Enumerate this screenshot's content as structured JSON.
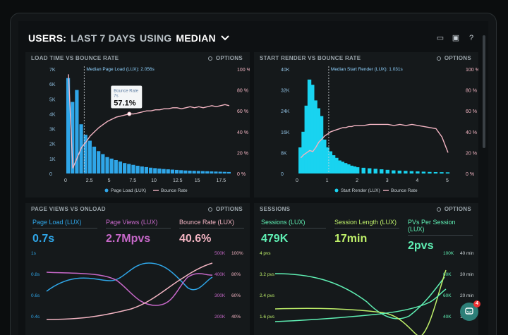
{
  "header": {
    "prefix": "USERS:",
    "range": "LAST 7 DAYS",
    "using": "USING",
    "metric": "MEDIAN"
  },
  "colors": {
    "blue": "#2fa6e8",
    "cyan": "#19d3f0",
    "pink": "#f2b4c2",
    "purple": "#c768c9",
    "green": "#5ff0b4",
    "lime": "#bff06a"
  },
  "panels": {
    "load": {
      "title": "LOAD TIME VS BOUNCE RATE",
      "options": "OPTIONS",
      "yleft": [
        "7K",
        "6K",
        "5K",
        "4K",
        "3K",
        "2K",
        "1K",
        "0"
      ],
      "yright": [
        "100 %",
        "80 %",
        "60 %",
        "40 %",
        "20 %",
        "0 %"
      ],
      "xticks": [
        "0",
        "2.5",
        "5",
        "7.5",
        "10",
        "12.5",
        "15",
        "17.5"
      ],
      "median_label": "Median Page Load (LUX): 2.056s",
      "tooltip_title": "Bounce Rate",
      "tooltip_sub": "7s",
      "tooltip_value": "57.1%",
      "legend": [
        "Page Load (LUX)",
        "Bounce Rate"
      ]
    },
    "render": {
      "title": "START RENDER VS BOUNCE RATE",
      "options": "OPTIONS",
      "yleft": [
        "40K",
        "32K",
        "24K",
        "16K",
        "8K",
        "0"
      ],
      "yright": [
        "100 %",
        "80 %",
        "60 %",
        "40 %",
        "20 %",
        "0 %"
      ],
      "xticks": [
        "0",
        "1",
        "2",
        "3",
        "4",
        "5"
      ],
      "median_label": "Median Start Render (LUX): 1.031s",
      "legend": [
        "Start Render (LUX)",
        "Bounce Rate"
      ]
    },
    "pageviews": {
      "title": "PAGE VIEWS VS ONLOAD",
      "options": "OPTIONS",
      "kpis": [
        {
          "label": "Page Load (LUX)",
          "value": "0.7s",
          "color": "#2fa6e8"
        },
        {
          "label": "Page Views (LUX)",
          "value": "2.7Mpvs",
          "color": "#c768c9"
        },
        {
          "label": "Bounce Rate (LUX)",
          "value": "40.6%",
          "color": "#f2b4c2"
        }
      ],
      "yleft": [
        "1s",
        "0.8s",
        "0.6s",
        "0.4s"
      ],
      "ymid": [
        "500K",
        "400K",
        "300K",
        "200K"
      ],
      "yright": [
        "100%",
        "80%",
        "60%",
        "40%"
      ]
    },
    "sessions": {
      "title": "SESSIONS",
      "options": "OPTIONS",
      "kpis": [
        {
          "label": "Sessions (LUX)",
          "value": "479K",
          "color": "#5ff0b4"
        },
        {
          "label": "Session Length (LUX)",
          "value": "17min",
          "color": "#bff06a"
        },
        {
          "label": "PVs Per Session (LUX)",
          "value": "2pvs",
          "color": "#5ff0b4"
        }
      ],
      "yleft": [
        "4 pvs",
        "3.2 pvs",
        "2.4 pvs",
        "1.6 pvs"
      ],
      "ymid": [
        "100K",
        "80K",
        "60K",
        "40K"
      ],
      "yright": [
        "40 min",
        "30 min",
        "20 min",
        "10 min"
      ]
    }
  },
  "chart_data": [
    {
      "type": "bar",
      "title": "LOAD TIME VS BOUNCE RATE",
      "ylim": [
        0,
        7000
      ],
      "x": [
        0.25,
        0.75,
        1.25,
        1.75,
        2.25,
        2.75,
        3.25,
        3.75,
        4.25,
        4.75,
        5.25,
        5.75,
        6.25,
        6.75,
        7.25,
        7.75,
        8.25,
        8.75,
        9.25,
        9.75,
        10.25,
        10.75,
        11.25,
        11.75,
        12.25,
        12.75,
        13.25,
        13.75,
        14.25,
        14.75,
        15.25,
        15.75,
        16.25,
        16.75,
        17.25,
        17.75,
        18.25,
        18.75
      ],
      "series": [
        {
          "name": "Page Load (LUX)",
          "values": [
            6400,
            4800,
            5600,
            3300,
            2600,
            2200,
            1800,
            1500,
            1300,
            1100,
            1000,
            900,
            800,
            700,
            640,
            580,
            520,
            470,
            430,
            390,
            360,
            330,
            300,
            280,
            260,
            240,
            220,
            200,
            190,
            180,
            170,
            160,
            150,
            140,
            130,
            120,
            110,
            100
          ]
        },
        {
          "name": "Bounce Rate",
          "line": true,
          "values": [
            95,
            5,
            15,
            25,
            30,
            36,
            40,
            44,
            47,
            50,
            52,
            54,
            55,
            56,
            57.1,
            57,
            58,
            59,
            60,
            60,
            61,
            61,
            62,
            62,
            63,
            63,
            62,
            63,
            64,
            63,
            64,
            63,
            64,
            65,
            64,
            65,
            66,
            65
          ]
        }
      ]
    },
    {
      "type": "bar",
      "title": "START RENDER VS BOUNCE RATE",
      "ylim": [
        0,
        40000
      ],
      "x": [
        0.1,
        0.2,
        0.3,
        0.4,
        0.5,
        0.6,
        0.7,
        0.8,
        0.9,
        1.0,
        1.1,
        1.2,
        1.3,
        1.4,
        1.5,
        1.6,
        1.7,
        1.8,
        1.9,
        2.0,
        2.2,
        2.4,
        2.6,
        2.8,
        3.0,
        3.2,
        3.4,
        3.6,
        3.8,
        4.0,
        4.2,
        4.4,
        4.6,
        4.8,
        5.0
      ],
      "series": [
        {
          "name": "Start Render (LUX)",
          "values": [
            10000,
            16000,
            26000,
            36000,
            34000,
            28000,
            25000,
            22000,
            13000,
            10000,
            8500,
            7000,
            6000,
            5000,
            4500,
            4000,
            3500,
            3000,
            2700,
            2400,
            2200,
            2000,
            1800,
            1600,
            1400,
            1200,
            1100,
            1000,
            900,
            800,
            700,
            600,
            550,
            500,
            450
          ]
        },
        {
          "name": "Bounce Rate",
          "line": true,
          "values": [
            15,
            18,
            20,
            22,
            21,
            25,
            30,
            33,
            36,
            38,
            40,
            41,
            42,
            43,
            44,
            44,
            45,
            45,
            46,
            46,
            46,
            47,
            47,
            47,
            47,
            46,
            47,
            46,
            47,
            46,
            45,
            44,
            43,
            35,
            20
          ]
        }
      ]
    }
  ]
}
